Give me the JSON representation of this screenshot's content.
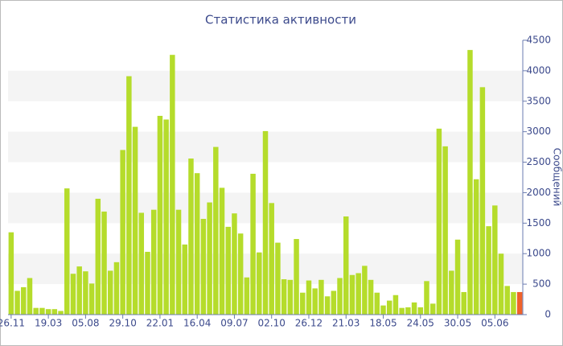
{
  "chart_data": {
    "type": "bar",
    "title": "Статистика активности",
    "y_label": "Сообщений",
    "categories": [
      "26.11",
      null,
      null,
      null,
      null,
      null,
      "19.03",
      null,
      null,
      null,
      null,
      null,
      "05.08",
      null,
      null,
      null,
      null,
      null,
      "29.10",
      null,
      null,
      null,
      null,
      null,
      "22.01",
      null,
      null,
      null,
      null,
      null,
      "16.04",
      null,
      null,
      null,
      null,
      null,
      "09.07",
      null,
      null,
      null,
      null,
      null,
      "02.10",
      null,
      null,
      null,
      null,
      null,
      "26.12",
      null,
      null,
      null,
      null,
      null,
      "21.03",
      null,
      null,
      null,
      null,
      null,
      "18.05",
      null,
      null,
      null,
      null,
      null,
      "24.05",
      null,
      null,
      null,
      null,
      null,
      "30.05",
      null,
      null,
      null,
      null,
      null,
      "05.06",
      null,
      null,
      null,
      null
    ],
    "values": [
      1350,
      390,
      450,
      600,
      110,
      110,
      90,
      90,
      60,
      2070,
      670,
      790,
      710,
      510,
      1900,
      1690,
      720,
      860,
      2700,
      3910,
      3080,
      1670,
      1030,
      1720,
      3260,
      3200,
      4260,
      1720,
      1150,
      2560,
      2320,
      1570,
      1840,
      2750,
      2080,
      1440,
      1660,
      1330,
      610,
      2310,
      1020,
      3010,
      1830,
      1180,
      580,
      570,
      1240,
      360,
      560,
      430,
      570,
      300,
      390,
      600,
      1610,
      650,
      680,
      800,
      570,
      360,
      150,
      230,
      320,
      110,
      120,
      200,
      120,
      550,
      180,
      3050,
      2760,
      720,
      1230,
      370,
      4340,
      2220,
      3730,
      1450,
      1790,
      1000,
      470,
      370,
      370
    ],
    "color": "#b5dc2b",
    "last_color": "#f0622a",
    "ylim": [
      0,
      4500
    ],
    "yticks": [
      0,
      500,
      1000,
      1500,
      2000,
      2500,
      3000,
      3500,
      4000,
      4500
    ],
    "y_axis_side": "right",
    "grid": "bands"
  }
}
